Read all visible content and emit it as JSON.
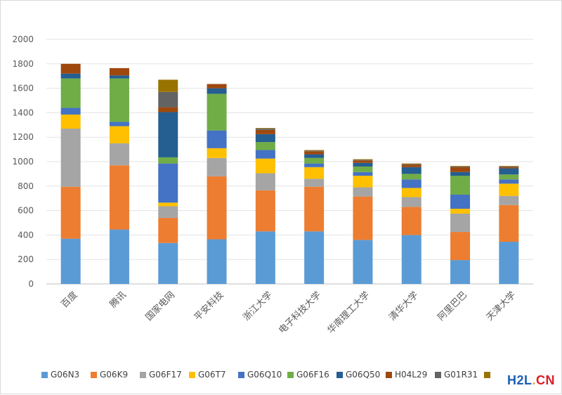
{
  "chart_data": {
    "type": "stacked-bar",
    "categories": [
      "百度",
      "腾讯",
      "国家电网",
      "平安科技",
      "浙江大学",
      "电子科技大学",
      "华南理工大学",
      "清华大学",
      "阿里巴巴",
      "天津大学"
    ],
    "ylim": [
      0,
      2000
    ],
    "yticks": [
      0,
      200,
      400,
      600,
      800,
      1000,
      1200,
      1400,
      1600,
      1800,
      2000
    ],
    "grid": true,
    "legend_position": "bottom",
    "series": [
      {
        "name": "G06N3",
        "color": "#5b9bd5",
        "values": [
          370,
          445,
          335,
          365,
          430,
          430,
          360,
          400,
          195,
          345
        ]
      },
      {
        "name": "G06K9",
        "color": "#ed7d31",
        "values": [
          425,
          525,
          205,
          515,
          335,
          365,
          355,
          230,
          230,
          300
        ]
      },
      {
        "name": "G06F17",
        "color": "#a5a5a5",
        "values": [
          475,
          180,
          95,
          150,
          140,
          65,
          75,
          80,
          150,
          75
        ]
      },
      {
        "name": "G06T7",
        "color": "#ffc000",
        "values": [
          115,
          140,
          30,
          80,
          120,
          95,
          95,
          75,
          40,
          100
        ]
      },
      {
        "name": "G06Q10",
        "color": "#4472c4",
        "values": [
          55,
          35,
          320,
          145,
          70,
          30,
          30,
          70,
          115,
          35
        ]
      },
      {
        "name": "G06F16",
        "color": "#70ad47",
        "values": [
          240,
          355,
          50,
          300,
          65,
          45,
          45,
          45,
          155,
          40
        ]
      },
      {
        "name": "G06Q50",
        "color": "#255e91",
        "values": [
          40,
          25,
          370,
          45,
          65,
          30,
          30,
          55,
          30,
          50
        ]
      },
      {
        "name": "H04L29",
        "color": "#9e480e",
        "values": [
          80,
          60,
          40,
          35,
          35,
          25,
          20,
          20,
          40,
          10
        ]
      },
      {
        "name": "G01R31",
        "color": "#636363",
        "values": [
          0,
          0,
          125,
          0,
          10,
          5,
          5,
          5,
          5,
          5
        ]
      },
      {
        "name": "",
        "color": "#997300",
        "values": [
          0,
          0,
          100,
          0,
          5,
          5,
          5,
          5,
          5,
          5
        ]
      }
    ]
  },
  "watermark": {
    "part1": "H2L",
    "part2": ".",
    "part3": "CN"
  }
}
